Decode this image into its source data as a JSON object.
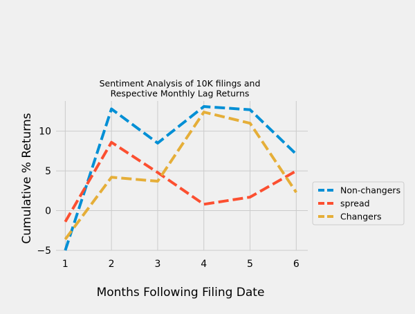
{
  "chart_data": {
    "type": "line",
    "title": "Sentiment Analysis of 10K filings and\nRespective Monthly Lag Returns",
    "xlabel": "Months Following Filing Date",
    "ylabel": "Cumulative % Returns",
    "x": [
      1,
      2,
      3,
      4,
      5,
      6
    ],
    "xlim": [
      0.8,
      6.25
    ],
    "ylim": [
      -5,
      13.8
    ],
    "xticks": [
      1,
      2,
      3,
      4,
      5,
      6
    ],
    "yticks": [
      -5,
      0,
      5,
      10
    ],
    "grid": true,
    "legend_position": "right",
    "line_style": "dashed",
    "series": [
      {
        "name": "Non-changers",
        "color": "#008fd5",
        "values": [
          -5.0,
          12.8,
          8.5,
          13.1,
          12.7,
          7.1
        ]
      },
      {
        "name": "spread",
        "color": "#fc4f30",
        "values": [
          -1.4,
          8.6,
          4.8,
          0.8,
          1.7,
          5.0
        ]
      },
      {
        "name": "Changers",
        "color": "#e5ae38",
        "values": [
          -3.6,
          4.2,
          3.7,
          12.4,
          11.0,
          2.3
        ]
      }
    ]
  }
}
